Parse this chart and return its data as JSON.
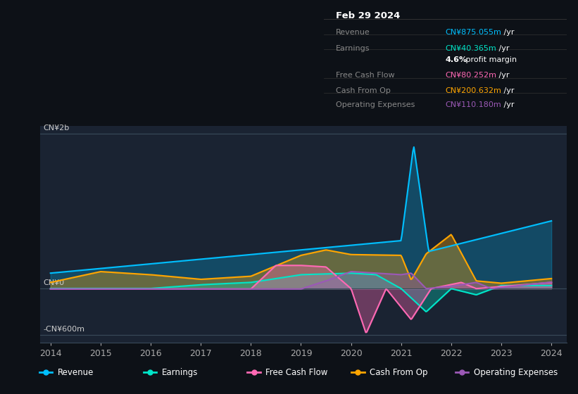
{
  "background_color": "#0d1117",
  "plot_bg_color": "#1a2332",
  "title_box": {
    "date": "Feb 29 2024",
    "rows": [
      {
        "label": "Revenue",
        "value": "CN¥875.055m /yr",
        "value_color": "#00bfff"
      },
      {
        "label": "Earnings",
        "value": "CN¥40.365m /yr",
        "value_color": "#00e5c8"
      },
      {
        "label": "",
        "value": "4.6% profit margin",
        "value_color": "#ffffff"
      },
      {
        "label": "Free Cash Flow",
        "value": "CN¥80.252m /yr",
        "value_color": "#ff69b4"
      },
      {
        "label": "Cash From Op",
        "value": "CN¥200.632m /yr",
        "value_color": "#ffa500"
      },
      {
        "label": "Operating Expenses",
        "value": "CN¥110.180m /yr",
        "value_color": "#9b59b6"
      }
    ]
  },
  "ylabel_top": "CN¥2b",
  "ylabel_zero": "CN¥0",
  "ylabel_bottom": "-CN¥600m",
  "ylim": [
    -700,
    2100
  ],
  "colors": {
    "revenue": "#00bfff",
    "earnings": "#00e5c8",
    "free_cash_flow": "#ff69b4",
    "cash_from_op": "#ffa500",
    "operating_expenses": "#9b59b6"
  }
}
